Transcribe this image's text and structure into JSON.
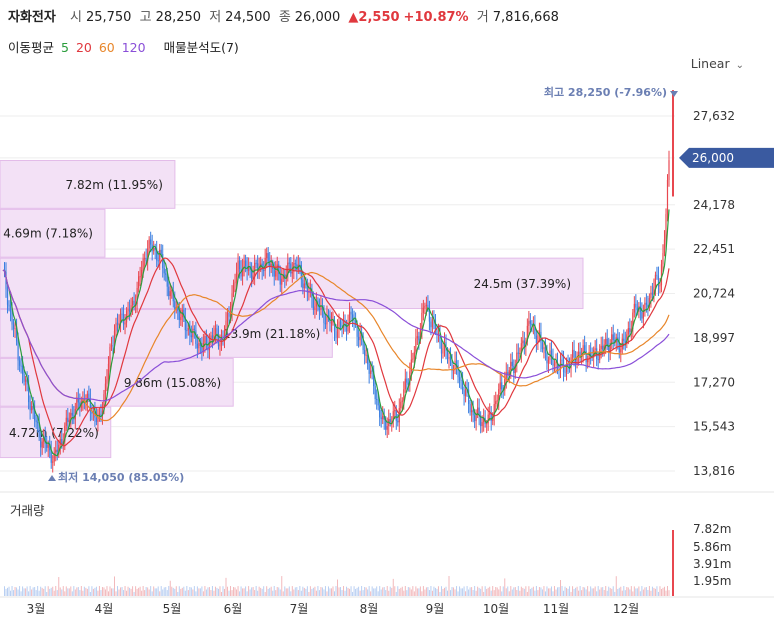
{
  "header": {
    "name": "자화전자",
    "open_label": "시",
    "open": "25,750",
    "high_label": "고",
    "high": "28,250",
    "low_label": "저",
    "low": "24,500",
    "close_label": "종",
    "close": "26,000",
    "change": "▲2,550",
    "change_pct": "+10.87%",
    "volume_label": "거",
    "volume": "7,816,668"
  },
  "ma": {
    "label": "이동평균",
    "periods": [
      {
        "value": "5",
        "color": "#2a9d3c"
      },
      {
        "value": "20",
        "color": "#e0383e"
      },
      {
        "value": "60",
        "color": "#e8862a"
      },
      {
        "value": "120",
        "color": "#8a4fd8"
      }
    ],
    "analysis": "매물분석도(7)"
  },
  "scale_selector": "Linear",
  "chart_data": {
    "type": "candlestick",
    "price_axis_ticks": [
      "27,632",
      "26,000",
      "24,178",
      "22,451",
      "20,724",
      "18,997",
      "17,270",
      "15,543",
      "13,816"
    ],
    "current_price_tag": "26,000",
    "high_marker": "최고 28,250 (-7.96%)",
    "low_marker": "최저 14,050 (85.05%)",
    "x_ticks": [
      "3월",
      "4월",
      "5월",
      "6월",
      "7월",
      "8월",
      "9월",
      "10월",
      "11월",
      "12월"
    ],
    "volume_title": "거래량",
    "volume_axis_ticks": [
      "7.82m",
      "5.86m",
      "3.91m",
      "1.95m"
    ],
    "volume_profile": [
      {
        "label": "7.82m (11.95%)",
        "price_top": 25900,
        "price_bottom": 24000,
        "frac": 0.3
      },
      {
        "label": "4.69m (7.18%)",
        "price_top": 24000,
        "price_bottom": 22100,
        "frac": 0.18
      },
      {
        "label": "24.5m (37.39%)",
        "price_top": 22100,
        "price_bottom": 20100,
        "frac": 1.0
      },
      {
        "label": "13.9m (21.18%)",
        "price_top": 20100,
        "price_bottom": 18200,
        "frac": 0.57
      },
      {
        "label": "9.86m (15.08%)",
        "price_top": 18200,
        "price_bottom": 16300,
        "frac": 0.4
      },
      {
        "label": "4.72m (7.22%)",
        "price_top": 16300,
        "price_bottom": 14300,
        "frac": 0.19
      }
    ],
    "colors": {
      "up": "#e8474f",
      "down": "#3a7ee0",
      "profile": "#e9c6f1",
      "tag": "#3a5aa0"
    }
  }
}
